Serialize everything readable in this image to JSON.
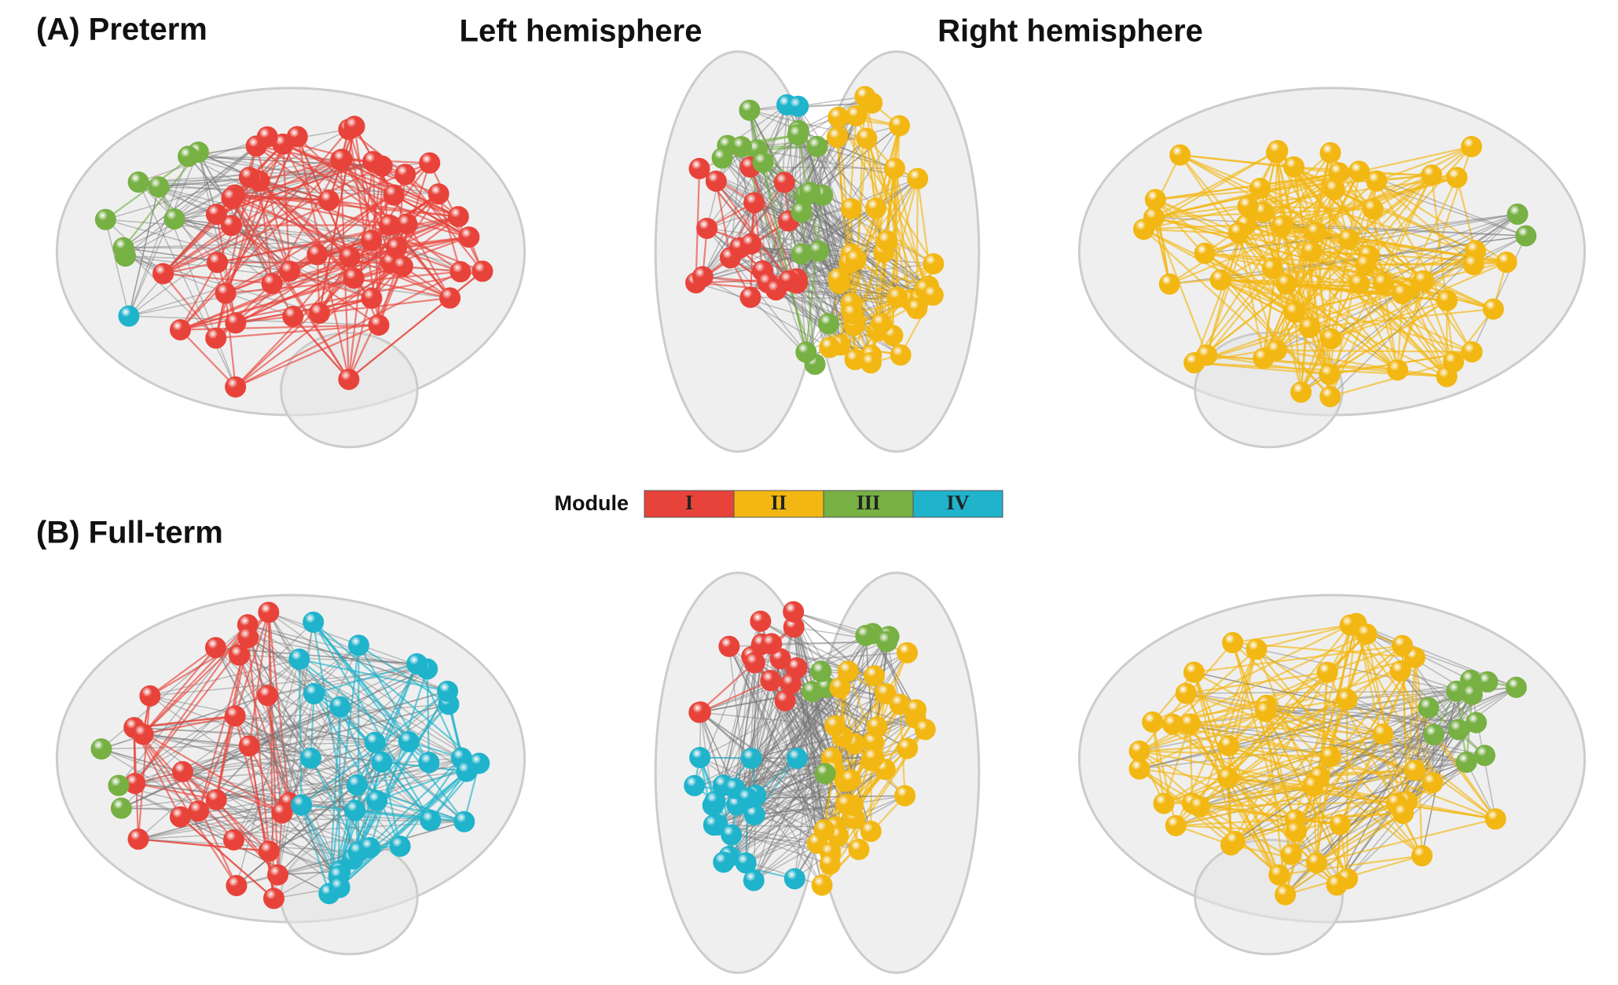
{
  "panels": {
    "a": "(A) Preterm",
    "b": "(B) Full-term"
  },
  "headers": {
    "left": "Left hemisphere",
    "right": "Right hemisphere"
  },
  "legend": {
    "title": "Module",
    "modules": [
      {
        "label": "I",
        "color": "#e8433a"
      },
      {
        "label": "II",
        "color": "#f2b713"
      },
      {
        "label": "III",
        "color": "#77b043"
      },
      {
        "label": "IV",
        "color": "#1fb3cc"
      }
    ]
  }
}
